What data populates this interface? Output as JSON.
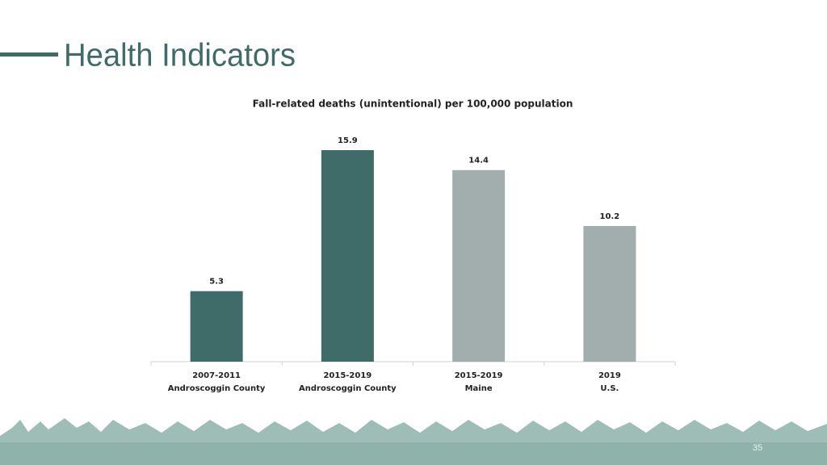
{
  "slide_title": "Health Indicators",
  "page_number": "35",
  "chart_data": {
    "type": "bar",
    "title": "Fall-related deaths (unintentional) per 100,000 population",
    "categories": [
      [
        "2007-2011",
        "Androscoggin County"
      ],
      [
        "2015-2019",
        "Androscoggin County"
      ],
      [
        "2015-2019",
        "Maine"
      ],
      [
        "2019",
        "U.S."
      ]
    ],
    "values": [
      5.3,
      15.9,
      14.4,
      10.2
    ],
    "colors": [
      "#3f6b69",
      "#3f6b69",
      "#a2adad",
      "#a2adad"
    ]
  }
}
